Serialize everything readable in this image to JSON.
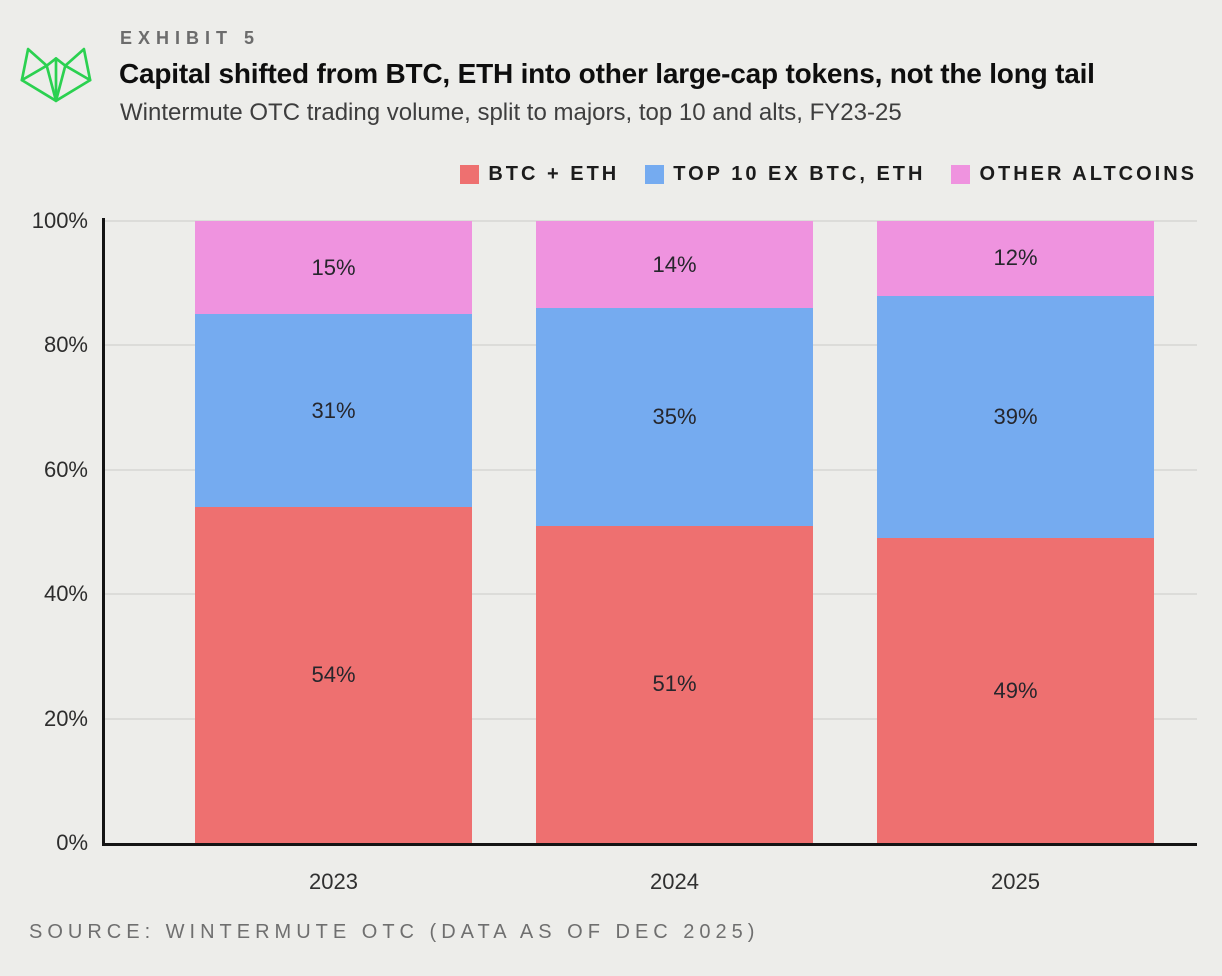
{
  "header": {
    "exhibit_label": "EXHIBIT 5",
    "title": "Capital shifted from BTC, ETH into other large-cap tokens, not the long tail",
    "subtitle": "Wintermute OTC trading volume, split to majors, top 10 and alts, FY23-25"
  },
  "logo": {
    "name": "wintermute-logo",
    "color": "#2BD150"
  },
  "legend": [
    {
      "label": "BTC + ETH",
      "color": "#EE7070"
    },
    {
      "label": "TOP 10 EX BTC, ETH",
      "color": "#75ABF0"
    },
    {
      "label": "OTHER ALTCOINS",
      "color": "#EF93DF"
    }
  ],
  "chart_data": {
    "type": "bar",
    "stacked": true,
    "title": "Capital shifted from BTC, ETH into other large-cap tokens, not the long tail",
    "subtitle": "Wintermute OTC trading volume, split to majors, top 10 and alts, FY23-25",
    "categories": [
      "2023",
      "2024",
      "2025"
    ],
    "series": [
      {
        "name": "BTC + ETH",
        "color": "#EE7070",
        "values": [
          54,
          51,
          49
        ]
      },
      {
        "name": "TOP 10 EX BTC, ETH",
        "color": "#75ABF0",
        "values": [
          31,
          35,
          39
        ]
      },
      {
        "name": "OTHER ALTCOINS",
        "color": "#EF93DF",
        "values": [
          15,
          14,
          12
        ]
      }
    ],
    "value_suffix": "%",
    "y_ticks": [
      0,
      20,
      40,
      60,
      80,
      100
    ],
    "y_tick_suffix": "%",
    "ylim": [
      0,
      100
    ],
    "grid": true,
    "legend_position": "top-right"
  },
  "source": "SOURCE: WINTERMUTE OTC (DATA AS OF DEC 2025)"
}
